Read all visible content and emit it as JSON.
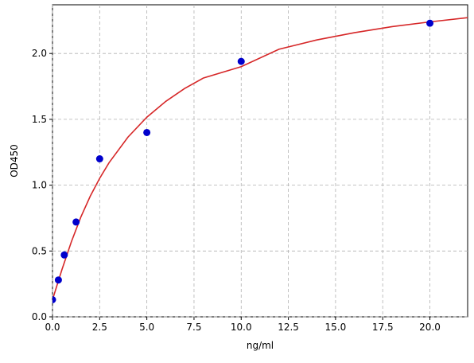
{
  "chart_data": {
    "type": "scatter",
    "xlabel": "ng/ml",
    "ylabel": "OD450",
    "xlim": [
      0,
      22
    ],
    "ylim": [
      0,
      2.37
    ],
    "xticks": [
      {
        "value": 0,
        "label": "0.0"
      },
      {
        "value": 2.5,
        "label": "2.5"
      },
      {
        "value": 5,
        "label": "5.0"
      },
      {
        "value": 7.5,
        "label": "7.5"
      },
      {
        "value": 10,
        "label": "10.0"
      },
      {
        "value": 12.5,
        "label": "12.5"
      },
      {
        "value": 15,
        "label": "15.0"
      },
      {
        "value": 17.5,
        "label": "17.5"
      },
      {
        "value": 20,
        "label": "20.0"
      }
    ],
    "yticks": [
      {
        "value": 0,
        "label": "0.0"
      },
      {
        "value": 0.5,
        "label": "0.5"
      },
      {
        "value": 1,
        "label": "1.0"
      },
      {
        "value": 1.5,
        "label": "1.5"
      },
      {
        "value": 2,
        "label": "2.0"
      }
    ],
    "grid": true,
    "series": [
      {
        "kind": "line",
        "color": "#d62728",
        "x": [
          0,
          0.5,
          1,
          1.5,
          2,
          2.5,
          3,
          4,
          5,
          6,
          7,
          8,
          10,
          12,
          14,
          16,
          18,
          20,
          22
        ],
        "values": [
          0.13,
          0.358,
          0.57,
          0.757,
          0.916,
          1.052,
          1.171,
          1.365,
          1.516,
          1.636,
          1.734,
          1.814,
          1.9,
          2.032,
          2.103,
          2.158,
          2.204,
          2.24,
          2.272
        ]
      },
      {
        "kind": "points",
        "color": "#0000cc",
        "x": [
          0,
          0.3125,
          0.625,
          1.25,
          2.5,
          5,
          10,
          20
        ],
        "values": [
          0.13,
          0.28,
          0.47,
          0.72,
          1.2,
          1.4,
          1.94,
          2.23
        ]
      }
    ]
  }
}
